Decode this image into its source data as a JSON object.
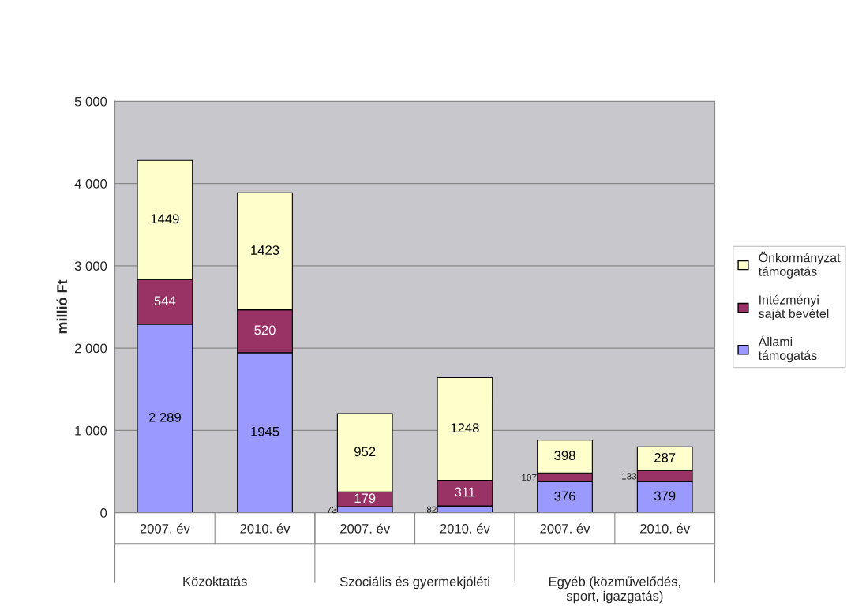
{
  "chart_data": {
    "type": "bar",
    "stacked": true,
    "ylabel": "millió Ft",
    "categories": [
      "2007. év",
      "2010. év",
      "2007. év",
      "2010. év",
      "2007. év",
      "2010. év"
    ],
    "annotations": [
      "Közoktatás",
      "Szociális és gyermekjóléti",
      "Egyéb (közművelődés,\nsport, igazgatás)"
    ],
    "series": [
      {
        "name": "Állami\ntámogatás",
        "color": "#9999ff",
        "values": [
          2289,
          1945,
          73,
          82,
          376,
          379
        ],
        "value_labels": [
          "2 289",
          "1945",
          "73",
          "82",
          "376",
          "379"
        ]
      },
      {
        "name": "Intézményi\nsaját bevétel",
        "color": "#993366",
        "values": [
          544,
          520,
          179,
          311,
          107,
          133
        ],
        "value_labels": [
          "544",
          "520",
          "179",
          "311",
          "107",
          "133"
        ]
      },
      {
        "name": "Önkormányzat\ntámogatás",
        "color": "#ffffcc",
        "values": [
          1449,
          1423,
          952,
          1248,
          398,
          287
        ],
        "value_labels": [
          "1449",
          "1423",
          "952",
          "1248",
          "398",
          "287"
        ]
      }
    ],
    "ylim": [
      0,
      5000
    ],
    "yticks": [
      0,
      {
        "value": 1000,
        "label": "1 000"
      },
      {
        "value": 2000,
        "label": "2 000"
      },
      {
        "value": 3000,
        "label": "3 000"
      },
      {
        "value": 4000,
        "label": "4 000"
      },
      {
        "value": 5000,
        "label": "5 000"
      }
    ],
    "grid": "y",
    "legend": "right"
  }
}
